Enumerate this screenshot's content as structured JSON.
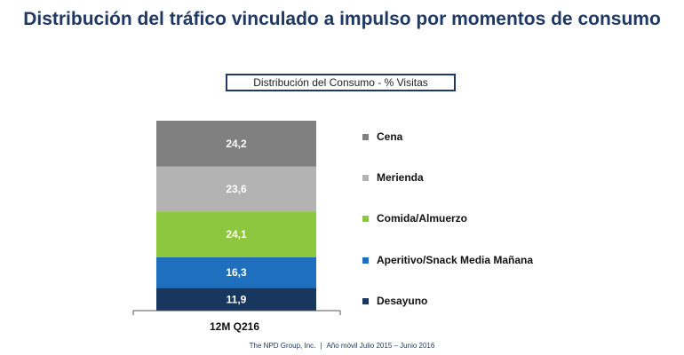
{
  "header": {
    "title": "Distribución del tráfico vinculado a impulso por momentos de consumo"
  },
  "chart_data": {
    "type": "bar",
    "stacked": true,
    "title": "Distribución del Consumo - % Visitas",
    "categories": [
      "12M Q216"
    ],
    "series": [
      {
        "name": "Desayuno",
        "values": [
          11.9
        ],
        "label": "11,9",
        "color": "#17375e"
      },
      {
        "name": "Aperitivo/Snack Media Mañana",
        "values": [
          16.3
        ],
        "label": "16,3",
        "color": "#1f6fbf"
      },
      {
        "name": "Comida/Almuerzo",
        "values": [
          24.1
        ],
        "label": "24,1",
        "color": "#8dc63f"
      },
      {
        "name": "Merienda",
        "values": [
          23.6
        ],
        "label": "23,6",
        "color": "#b3b3b3"
      },
      {
        "name": "Cena",
        "values": [
          24.2
        ],
        "label": "24,2",
        "color": "#808080"
      }
    ],
    "legend_order": [
      "Cena",
      "Merienda",
      "Comida/Almuerzo",
      "Aperitivo/Snack Media Mañana",
      "Desayuno"
    ],
    "legend_position": "right",
    "ylim": [
      0,
      100
    ]
  },
  "footer": {
    "company": "The NPD Group, Inc.",
    "separator": "|",
    "period": "Año móvil Julio 2015 – Junio 2016"
  }
}
